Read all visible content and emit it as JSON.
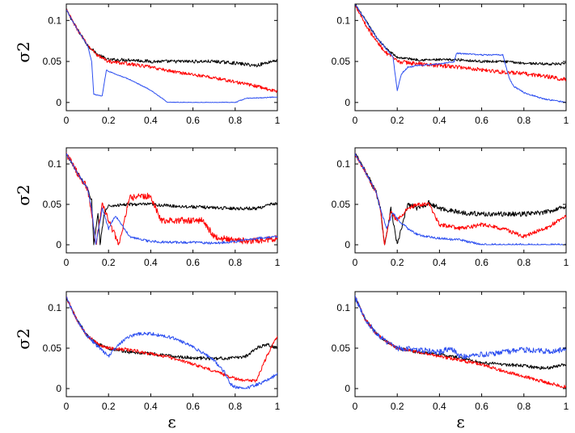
{
  "figure_title": "",
  "colors": {
    "black": "#000000",
    "red": "#ff0000",
    "blue": "#2d4ff0"
  },
  "chart_data": [
    {
      "type": "line",
      "panel": "top-left",
      "xlabel": "",
      "ylabel": "σ2",
      "xlim": [
        0,
        1
      ],
      "ylim": [
        -0.01,
        0.12
      ],
      "xticks": [
        "0",
        "0.2",
        "0.4",
        "0.6",
        "0.8",
        "1"
      ],
      "xtick_values": [
        0,
        0.2,
        0.4,
        0.6,
        0.8,
        1
      ],
      "yticks": [
        "0",
        "0.05",
        "0.1"
      ],
      "ytick_values": [
        0,
        0.05,
        0.1
      ],
      "series": [
        {
          "name": "black",
          "color": "#000000",
          "noise": 0.002,
          "x": [
            0,
            0.05,
            0.1,
            0.15,
            0.2,
            0.3,
            0.4,
            0.5,
            0.6,
            0.7,
            0.8,
            0.9,
            1.0
          ],
          "y": [
            0.113,
            0.09,
            0.07,
            0.058,
            0.052,
            0.052,
            0.05,
            0.05,
            0.05,
            0.05,
            0.048,
            0.045,
            0.052
          ]
        },
        {
          "name": "red",
          "color": "#ff0000",
          "noise": 0.002,
          "x": [
            0,
            0.05,
            0.1,
            0.15,
            0.2,
            0.3,
            0.4,
            0.5,
            0.6,
            0.7,
            0.8,
            0.9,
            1.0
          ],
          "y": [
            0.113,
            0.09,
            0.07,
            0.057,
            0.05,
            0.047,
            0.043,
            0.038,
            0.034,
            0.03,
            0.025,
            0.02,
            0.013
          ]
        },
        {
          "name": "blue",
          "color": "#2d4ff0",
          "noise": 0.0005,
          "x": [
            0,
            0.05,
            0.1,
            0.12,
            0.13,
            0.17,
            0.19,
            0.2,
            0.3,
            0.4,
            0.48,
            0.6,
            0.7,
            0.8,
            0.85,
            0.95,
            1.0
          ],
          "y": [
            0.113,
            0.09,
            0.07,
            0.05,
            0.01,
            0.008,
            0.04,
            0.038,
            0.028,
            0.015,
            0.0,
            0.0,
            0.0,
            0.0,
            0.005,
            0.006,
            0.007
          ]
        }
      ]
    },
    {
      "type": "line",
      "panel": "top-right",
      "xlabel": "",
      "ylabel": "",
      "xlim": [
        0,
        1
      ],
      "ylim": [
        -0.01,
        0.12
      ],
      "xticks": [
        "0",
        "0.2",
        "0.4",
        "0.6",
        "0.8",
        "1"
      ],
      "xtick_values": [
        0,
        0.2,
        0.4,
        0.6,
        0.8,
        1
      ],
      "yticks": [
        "0",
        "0.05",
        "0.1"
      ],
      "ytick_values": [
        0,
        0.05,
        0.1
      ],
      "series": [
        {
          "name": "black",
          "color": "#000000",
          "noise": 0.0015,
          "x": [
            0,
            0.05,
            0.1,
            0.15,
            0.2,
            0.3,
            0.4,
            0.5,
            0.6,
            0.7,
            0.8,
            0.9,
            1.0
          ],
          "y": [
            0.12,
            0.1,
            0.08,
            0.065,
            0.055,
            0.052,
            0.052,
            0.052,
            0.05,
            0.05,
            0.048,
            0.047,
            0.047
          ]
        },
        {
          "name": "red",
          "color": "#ff0000",
          "noise": 0.0025,
          "x": [
            0,
            0.05,
            0.1,
            0.15,
            0.2,
            0.3,
            0.4,
            0.5,
            0.6,
            0.7,
            0.8,
            0.9,
            1.0
          ],
          "y": [
            0.12,
            0.095,
            0.075,
            0.06,
            0.05,
            0.047,
            0.045,
            0.043,
            0.04,
            0.037,
            0.035,
            0.032,
            0.028
          ]
        },
        {
          "name": "blue",
          "color": "#2d4ff0",
          "noise": 0.0008,
          "x": [
            0,
            0.05,
            0.1,
            0.15,
            0.18,
            0.2,
            0.22,
            0.25,
            0.3,
            0.4,
            0.47,
            0.48,
            0.6,
            0.7,
            0.73,
            0.75,
            0.8,
            0.9,
            1.0
          ],
          "y": [
            0.12,
            0.1,
            0.08,
            0.065,
            0.055,
            0.015,
            0.035,
            0.043,
            0.045,
            0.047,
            0.05,
            0.06,
            0.058,
            0.058,
            0.03,
            0.02,
            0.012,
            0.004,
            0.0
          ]
        }
      ]
    },
    {
      "type": "line",
      "panel": "middle-left",
      "xlabel": "",
      "ylabel": "σ2",
      "xlim": [
        0,
        1
      ],
      "ylim": [
        -0.01,
        0.12
      ],
      "xticks": [
        "0",
        "0.2",
        "0.4",
        "0.6",
        "0.8",
        "1"
      ],
      "xtick_values": [
        0,
        0.2,
        0.4,
        0.6,
        0.8,
        1
      ],
      "yticks": [
        "0",
        "0.05",
        "0.1"
      ],
      "ytick_values": [
        0,
        0.05,
        0.1
      ],
      "series": [
        {
          "name": "black",
          "color": "#000000",
          "noise": 0.002,
          "x": [
            0,
            0.05,
            0.1,
            0.12,
            0.13,
            0.15,
            0.16,
            0.18,
            0.2,
            0.3,
            0.4,
            0.5,
            0.6,
            0.7,
            0.8,
            0.9,
            1.0
          ],
          "y": [
            0.113,
            0.09,
            0.07,
            0.055,
            0.0,
            0.038,
            0.0,
            0.04,
            0.048,
            0.05,
            0.05,
            0.048,
            0.047,
            0.046,
            0.045,
            0.045,
            0.052
          ]
        },
        {
          "name": "red",
          "color": "#ff0000",
          "noise": 0.004,
          "x": [
            0,
            0.05,
            0.1,
            0.12,
            0.14,
            0.17,
            0.2,
            0.25,
            0.3,
            0.35,
            0.4,
            0.45,
            0.55,
            0.65,
            0.7,
            0.8,
            0.9,
            1.0
          ],
          "y": [
            0.113,
            0.09,
            0.07,
            0.04,
            0.0,
            0.05,
            0.03,
            0.0,
            0.058,
            0.06,
            0.06,
            0.03,
            0.03,
            0.03,
            0.01,
            0.005,
            0.005,
            0.008
          ]
        },
        {
          "name": "blue",
          "color": "#2d4ff0",
          "noise": 0.0015,
          "x": [
            0,
            0.05,
            0.1,
            0.12,
            0.14,
            0.17,
            0.2,
            0.23,
            0.25,
            0.3,
            0.4,
            0.5,
            0.6,
            0.7,
            0.8,
            0.9,
            1.0
          ],
          "y": [
            0.113,
            0.09,
            0.07,
            0.045,
            0.0,
            0.045,
            0.02,
            0.035,
            0.03,
            0.01,
            0.004,
            0.003,
            0.003,
            0.002,
            0.004,
            0.008,
            0.01
          ]
        }
      ]
    },
    {
      "type": "line",
      "panel": "middle-right",
      "xlabel": "",
      "ylabel": "",
      "xlim": [
        0,
        1
      ],
      "ylim": [
        -0.01,
        0.12
      ],
      "xticks": [
        "0",
        "0.2",
        "0.4",
        "0.6",
        "0.8",
        "1"
      ],
      "xtick_values": [
        0,
        0.2,
        0.4,
        0.6,
        0.8,
        1
      ],
      "yticks": [
        "0",
        "0.05",
        "0.1"
      ],
      "ytick_values": [
        0,
        0.05,
        0.1
      ],
      "series": [
        {
          "name": "black",
          "color": "#000000",
          "noise": 0.003,
          "x": [
            0,
            0.05,
            0.1,
            0.12,
            0.14,
            0.17,
            0.2,
            0.25,
            0.3,
            0.35,
            0.4,
            0.5,
            0.6,
            0.7,
            0.8,
            0.9,
            1.0
          ],
          "y": [
            0.113,
            0.09,
            0.065,
            0.045,
            0.0,
            0.045,
            0.0,
            0.05,
            0.045,
            0.052,
            0.045,
            0.04,
            0.038,
            0.038,
            0.038,
            0.04,
            0.048
          ]
        },
        {
          "name": "red",
          "color": "#ff0000",
          "noise": 0.0025,
          "x": [
            0,
            0.05,
            0.1,
            0.12,
            0.14,
            0.17,
            0.2,
            0.25,
            0.3,
            0.35,
            0.4,
            0.5,
            0.6,
            0.7,
            0.8,
            0.9,
            1.0
          ],
          "y": [
            0.113,
            0.09,
            0.065,
            0.045,
            0.0,
            0.04,
            0.03,
            0.045,
            0.05,
            0.05,
            0.025,
            0.02,
            0.025,
            0.02,
            0.01,
            0.02,
            0.035
          ]
        },
        {
          "name": "blue",
          "color": "#2d4ff0",
          "noise": 0.0015,
          "x": [
            0,
            0.05,
            0.1,
            0.12,
            0.15,
            0.18,
            0.2,
            0.25,
            0.3,
            0.4,
            0.5,
            0.55,
            0.6,
            0.7,
            0.8,
            0.9,
            1.0
          ],
          "y": [
            0.113,
            0.09,
            0.065,
            0.045,
            0.02,
            0.04,
            0.032,
            0.02,
            0.012,
            0.008,
            0.006,
            0.003,
            0.0,
            0.0,
            0.0,
            0.0,
            0.0
          ]
        }
      ]
    },
    {
      "type": "line",
      "panel": "bottom-left",
      "xlabel": "ε",
      "ylabel": "σ2",
      "xlim": [
        0,
        1
      ],
      "ylim": [
        -0.01,
        0.12
      ],
      "xticks": [
        "0",
        "0.2",
        "0.4",
        "0.6",
        "0.8",
        "1"
      ],
      "xtick_values": [
        0,
        0.2,
        0.4,
        0.6,
        0.8,
        1
      ],
      "yticks": [
        "0",
        "0.05",
        "0.1"
      ],
      "ytick_values": [
        0,
        0.05,
        0.1
      ],
      "series": [
        {
          "name": "black",
          "color": "#000000",
          "noise": 0.002,
          "x": [
            0,
            0.05,
            0.1,
            0.15,
            0.2,
            0.3,
            0.4,
            0.5,
            0.6,
            0.7,
            0.8,
            0.85,
            0.9,
            0.95,
            1.0
          ],
          "y": [
            0.113,
            0.085,
            0.065,
            0.055,
            0.05,
            0.045,
            0.043,
            0.04,
            0.038,
            0.037,
            0.038,
            0.04,
            0.05,
            0.055,
            0.05
          ]
        },
        {
          "name": "red",
          "color": "#ff0000",
          "noise": 0.002,
          "x": [
            0,
            0.05,
            0.1,
            0.15,
            0.2,
            0.3,
            0.4,
            0.5,
            0.6,
            0.7,
            0.8,
            0.85,
            0.9,
            0.95,
            1.0
          ],
          "y": [
            0.113,
            0.085,
            0.065,
            0.055,
            0.05,
            0.048,
            0.043,
            0.038,
            0.03,
            0.022,
            0.012,
            0.01,
            0.01,
            0.04,
            0.065
          ]
        },
        {
          "name": "blue",
          "color": "#2d4ff0",
          "noise": 0.002,
          "x": [
            0,
            0.05,
            0.1,
            0.15,
            0.18,
            0.2,
            0.25,
            0.3,
            0.35,
            0.4,
            0.5,
            0.6,
            0.7,
            0.75,
            0.78,
            0.8,
            0.85,
            0.9,
            0.95,
            1.0
          ],
          "y": [
            0.113,
            0.085,
            0.065,
            0.052,
            0.045,
            0.04,
            0.055,
            0.065,
            0.068,
            0.068,
            0.063,
            0.052,
            0.035,
            0.02,
            0.005,
            0.002,
            0.0,
            0.005,
            0.01,
            0.018
          ]
        }
      ]
    },
    {
      "type": "line",
      "panel": "bottom-right",
      "xlabel": "ε",
      "ylabel": "",
      "xlim": [
        0,
        1
      ],
      "ylim": [
        -0.01,
        0.12
      ],
      "xticks": [
        "0",
        "0.2",
        "0.4",
        "0.6",
        "0.8",
        "1"
      ],
      "xtick_values": [
        0,
        0.2,
        0.4,
        0.6,
        0.8,
        1
      ],
      "yticks": [
        "0",
        "0.05",
        "0.1"
      ],
      "ytick_values": [
        0,
        0.05,
        0.1
      ],
      "series": [
        {
          "name": "black",
          "color": "#000000",
          "noise": 0.002,
          "x": [
            0,
            0.05,
            0.1,
            0.15,
            0.2,
            0.3,
            0.4,
            0.5,
            0.6,
            0.7,
            0.8,
            0.9,
            1.0
          ],
          "y": [
            0.113,
            0.085,
            0.068,
            0.058,
            0.05,
            0.045,
            0.042,
            0.038,
            0.032,
            0.03,
            0.028,
            0.025,
            0.03
          ]
        },
        {
          "name": "red",
          "color": "#ff0000",
          "noise": 0.002,
          "x": [
            0,
            0.05,
            0.1,
            0.15,
            0.2,
            0.3,
            0.4,
            0.5,
            0.6,
            0.7,
            0.8,
            0.9,
            1.0
          ],
          "y": [
            0.113,
            0.085,
            0.068,
            0.058,
            0.05,
            0.045,
            0.04,
            0.035,
            0.03,
            0.022,
            0.015,
            0.008,
            0.002
          ]
        },
        {
          "name": "blue",
          "color": "#2d4ff0",
          "noise": 0.0035,
          "x": [
            0,
            0.05,
            0.1,
            0.15,
            0.2,
            0.3,
            0.4,
            0.45,
            0.5,
            0.6,
            0.7,
            0.8,
            0.9,
            1.0
          ],
          "y": [
            0.113,
            0.085,
            0.068,
            0.058,
            0.05,
            0.048,
            0.045,
            0.05,
            0.04,
            0.042,
            0.045,
            0.048,
            0.046,
            0.048
          ]
        }
      ]
    }
  ]
}
